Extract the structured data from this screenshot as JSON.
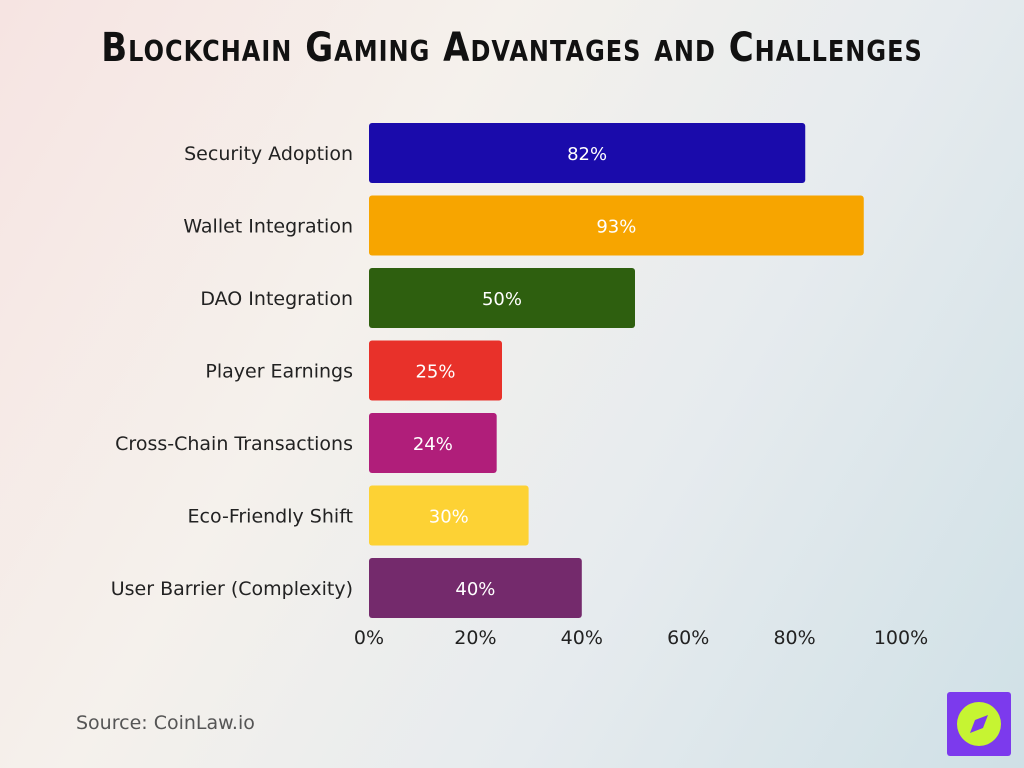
{
  "title": "Blockchain Gaming Advantages and Challenges",
  "source": "Source: CoinLaw.io",
  "logo": {
    "icon": "compass-icon",
    "bg_color": "#7c3aed",
    "circle_color": "#c6f432"
  },
  "chart_data": {
    "type": "bar",
    "orientation": "horizontal",
    "title": "Blockchain Gaming Advantages and Challenges",
    "categories": [
      "Security Adoption",
      "Wallet Integration",
      "DAO Integration",
      "Player Earnings",
      "Cross-Chain Transactions",
      "Eco-Friendly Shift",
      "User Barrier (Complexity)"
    ],
    "values": [
      82,
      93,
      50,
      25,
      24,
      30,
      40
    ],
    "value_labels": [
      "82%",
      "93%",
      "50%",
      "25%",
      "24%",
      "30%",
      "40%"
    ],
    "colors": [
      "#1a0bab",
      "#f7a500",
      "#2e5f0f",
      "#e8312a",
      "#b01e7a",
      "#fdd234",
      "#742a6c"
    ],
    "xlim": [
      0,
      100
    ],
    "x_ticks": [
      0,
      20,
      40,
      60,
      80,
      100
    ],
    "x_tick_labels": [
      "0%",
      "20%",
      "40%",
      "60%",
      "80%",
      "100%"
    ],
    "xlabel": "",
    "ylabel": "",
    "grid": false,
    "legend": false
  }
}
